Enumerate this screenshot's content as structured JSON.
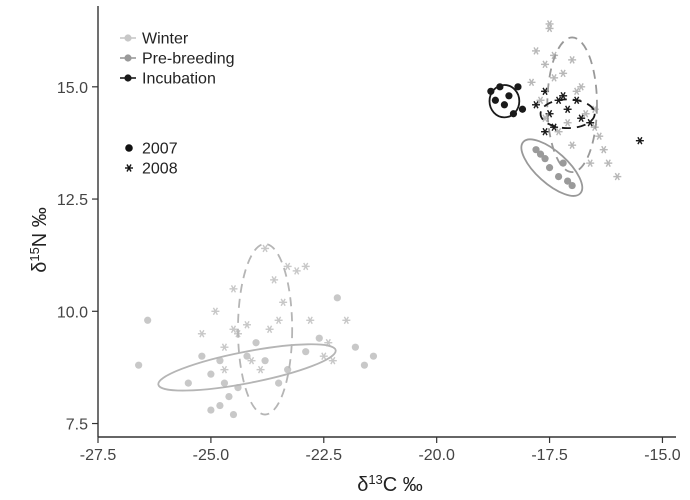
{
  "chart_data": {
    "type": "scatter",
    "title": "",
    "xlabel": "δ13C ‰",
    "ylabel": "δ15N ‰",
    "xlim": [
      -27.5,
      -14.7
    ],
    "ylim": [
      7.2,
      16.8
    ],
    "x_ticks": [
      -27.5,
      -25.0,
      -22.5,
      -20.0,
      -17.5,
      -15.0
    ],
    "x_tick_labels": [
      "-27.5",
      "-25.0",
      "-22.5",
      "-20.0",
      "-17.5",
      "-15.0"
    ],
    "y_ticks": [
      7.5,
      10.0,
      12.5,
      15.0
    ],
    "y_tick_labels": [
      "7.5",
      "10.0",
      "12.5",
      "15.0"
    ],
    "grid": false,
    "legend_placement": "top-left",
    "stage_legend": [
      {
        "label": "Winter",
        "color": "#c8c8c8"
      },
      {
        "label": "Pre-breeding",
        "color": "#9a9a9a"
      },
      {
        "label": "Incubation",
        "color": "#1a1a1a"
      }
    ],
    "year_legend": [
      {
        "label": "2007",
        "marker": "circle"
      },
      {
        "label": "2008",
        "marker": "asterisk"
      }
    ],
    "series": [
      {
        "stage": "Winter",
        "year": "2007",
        "marker": "circle",
        "color": "#c8c8c8",
        "points": [
          [
            -26.6,
            8.8
          ],
          [
            -26.4,
            9.8
          ],
          [
            -25.5,
            8.4
          ],
          [
            -25.2,
            9.0
          ],
          [
            -25.0,
            8.6
          ],
          [
            -24.8,
            7.9
          ],
          [
            -24.7,
            8.4
          ],
          [
            -24.5,
            7.7
          ],
          [
            -24.4,
            8.3
          ],
          [
            -24.8,
            8.9
          ],
          [
            -24.2,
            9.0
          ],
          [
            -24.0,
            9.3
          ],
          [
            -23.8,
            8.9
          ],
          [
            -23.5,
            8.4
          ],
          [
            -23.3,
            8.7
          ],
          [
            -22.9,
            9.1
          ],
          [
            -22.6,
            9.4
          ],
          [
            -22.2,
            10.3
          ],
          [
            -21.8,
            9.2
          ],
          [
            -21.6,
            8.8
          ],
          [
            -21.4,
            9.0
          ],
          [
            -24.6,
            8.1
          ],
          [
            -25.0,
            7.8
          ]
        ]
      },
      {
        "stage": "Winter",
        "year": "2008",
        "marker": "asterisk",
        "color": "#c8c8c8",
        "points": [
          [
            -25.2,
            9.5
          ],
          [
            -24.9,
            10.0
          ],
          [
            -24.7,
            9.2
          ],
          [
            -24.5,
            10.5
          ],
          [
            -24.4,
            9.5
          ],
          [
            -24.2,
            9.7
          ],
          [
            -24.1,
            8.9
          ],
          [
            -23.8,
            11.4
          ],
          [
            -23.6,
            10.7
          ],
          [
            -23.5,
            9.8
          ],
          [
            -23.4,
            10.2
          ],
          [
            -23.3,
            11.0
          ],
          [
            -23.1,
            10.9
          ],
          [
            -22.9,
            11.0
          ],
          [
            -22.8,
            9.8
          ],
          [
            -22.5,
            9.0
          ],
          [
            -22.4,
            9.3
          ],
          [
            -22.3,
            8.9
          ],
          [
            -22.0,
            9.8
          ],
          [
            -24.7,
            8.7
          ],
          [
            -23.9,
            8.7
          ],
          [
            -24.5,
            9.6
          ],
          [
            -23.7,
            9.6
          ]
        ]
      },
      {
        "stage": "Pre-breeding",
        "year": "2007",
        "marker": "circle",
        "color": "#9a9a9a",
        "points": [
          [
            -17.8,
            13.6
          ],
          [
            -17.7,
            13.5
          ],
          [
            -17.5,
            13.2
          ],
          [
            -17.3,
            13.0
          ],
          [
            -17.1,
            12.9
          ],
          [
            -17.0,
            12.8
          ],
          [
            -17.2,
            13.3
          ],
          [
            -17.6,
            13.4
          ]
        ]
      },
      {
        "stage": "Pre-breeding",
        "year": "2008",
        "marker": "asterisk",
        "color": "#b8b8b8",
        "points": [
          [
            -17.8,
            15.8
          ],
          [
            -17.6,
            15.5
          ],
          [
            -17.5,
            16.3
          ],
          [
            -17.4,
            15.7
          ],
          [
            -17.2,
            15.3
          ],
          [
            -17.0,
            15.6
          ],
          [
            -16.8,
            15.0
          ],
          [
            -16.7,
            14.4
          ],
          [
            -16.5,
            14.5
          ],
          [
            -16.5,
            14.1
          ],
          [
            -16.4,
            13.9
          ],
          [
            -16.3,
            13.6
          ],
          [
            -16.2,
            13.3
          ],
          [
            -16.0,
            13.0
          ],
          [
            -16.6,
            13.3
          ],
          [
            -17.0,
            13.7
          ],
          [
            -17.3,
            14.0
          ],
          [
            -17.6,
            14.3
          ],
          [
            -17.7,
            14.7
          ],
          [
            -17.4,
            15.2
          ],
          [
            -16.9,
            14.9
          ],
          [
            -17.1,
            14.2
          ],
          [
            -17.5,
            16.4
          ],
          [
            -17.9,
            15.1
          ]
        ]
      },
      {
        "stage": "Incubation",
        "year": "2007",
        "marker": "circle",
        "color": "#1a1a1a",
        "points": [
          [
            -18.8,
            14.9
          ],
          [
            -18.7,
            14.7
          ],
          [
            -18.6,
            15.0
          ],
          [
            -18.5,
            14.6
          ],
          [
            -18.3,
            14.4
          ],
          [
            -18.2,
            15.0
          ],
          [
            -18.1,
            14.5
          ],
          [
            -18.4,
            14.8
          ]
        ]
      },
      {
        "stage": "Incubation",
        "year": "2008",
        "marker": "asterisk",
        "color": "#1a1a1a",
        "points": [
          [
            -17.8,
            14.6
          ],
          [
            -17.6,
            14.9
          ],
          [
            -17.5,
            14.4
          ],
          [
            -17.4,
            14.1
          ],
          [
            -17.3,
            14.7
          ],
          [
            -17.1,
            14.5
          ],
          [
            -16.9,
            14.7
          ],
          [
            -16.8,
            14.3
          ],
          [
            -16.6,
            14.2
          ],
          [
            -15.5,
            13.8
          ],
          [
            -17.6,
            14.0
          ],
          [
            -17.2,
            14.8
          ]
        ]
      }
    ],
    "ellipses": [
      {
        "stage": "Winter",
        "year": "2007",
        "style": "solid",
        "color": "#b5b5b5",
        "cx": -24.2,
        "cy": 8.75,
        "rx": 2.0,
        "ry": 0.35,
        "angle_deg": 11
      },
      {
        "stage": "Winter",
        "year": "2008",
        "style": "dashed",
        "color": "#b5b5b5",
        "cx": -23.8,
        "cy": 9.6,
        "rx": 0.6,
        "ry": 1.9,
        "angle_deg": 0
      },
      {
        "stage": "Pre-breeding",
        "year": "2007",
        "style": "solid",
        "color": "#999999",
        "cx": -17.45,
        "cy": 13.2,
        "rx": 0.85,
        "ry": 0.35,
        "angle_deg": -42
      },
      {
        "stage": "Pre-breeding",
        "year": "2008",
        "style": "dashed",
        "color": "#999999",
        "cx": -17.0,
        "cy": 14.6,
        "rx": 0.55,
        "ry": 1.5,
        "angle_deg": 0
      },
      {
        "stage": "Incubation",
        "year": "2007",
        "style": "solid",
        "color": "#1a1a1a",
        "cx": -18.5,
        "cy": 14.68,
        "rx": 0.33,
        "ry": 0.36,
        "angle_deg": 0
      },
      {
        "stage": "Incubation",
        "year": "2008",
        "style": "dashed",
        "color": "#1a1a1a",
        "cx": -17.1,
        "cy": 14.4,
        "rx": 0.6,
        "ry": 0.32,
        "angle_deg": 0
      }
    ]
  }
}
